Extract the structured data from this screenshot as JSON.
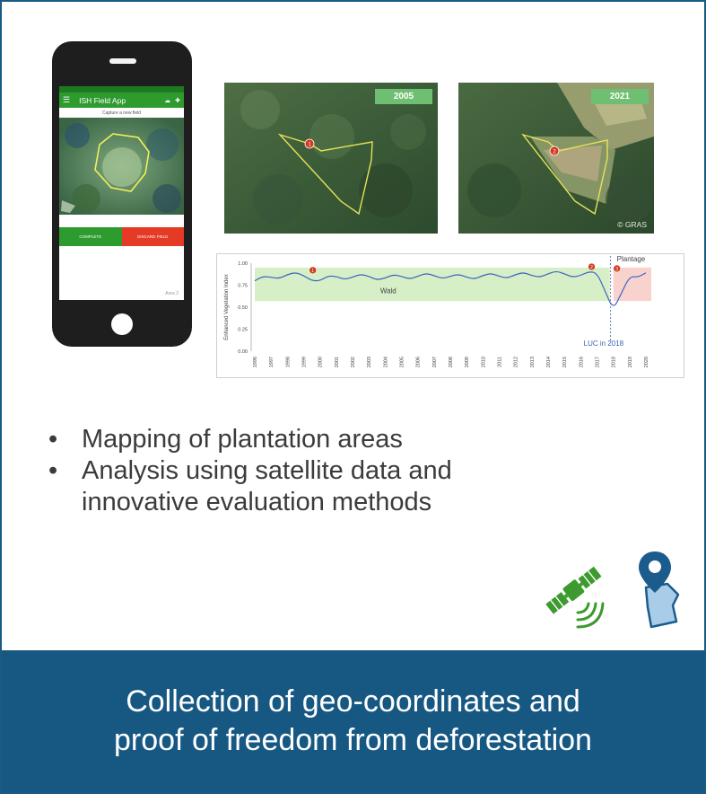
{
  "phone": {
    "app_title": "ISH Field App",
    "subtitle": "Capture a new field",
    "complete_label": "COMPLETE",
    "discard_label": "DISCARD FIELD",
    "footer": "Area 2"
  },
  "images": {
    "left_year": "2005",
    "right_year": "2021",
    "credit": "© GRAS",
    "marker_1": "1",
    "marker_2": "2"
  },
  "chart_data": {
    "type": "line",
    "ylabel": "Enhanced Vegetation Index",
    "ylim": [
      0.0,
      1.0
    ],
    "yticks": [
      "1.00",
      "0.75",
      "0.50",
      "0.25",
      "0.00"
    ],
    "x": [
      "1996",
      "1997",
      "1998",
      "1999",
      "2000",
      "2001",
      "2002",
      "2003",
      "2004",
      "2005",
      "2006",
      "2007",
      "2008",
      "2009",
      "2010",
      "2011",
      "2012",
      "2013",
      "2014",
      "2015",
      "2016",
      "2017",
      "2018",
      "2019",
      "2020"
    ],
    "series": [
      {
        "name": "",
        "values": [
          0.8,
          0.84,
          0.87,
          0.86,
          0.8,
          0.85,
          0.84,
          0.85,
          0.83,
          0.85,
          0.85,
          0.86,
          0.85,
          0.84,
          0.86,
          0.85,
          0.87,
          0.86,
          0.88,
          0.88,
          0.86,
          0.89,
          0.47,
          0.85,
          0.89
        ]
      }
    ],
    "regions": [
      {
        "label": "Wald",
        "from_year": "1996",
        "to_year": "2018",
        "ymin": 0.57,
        "ymax": 0.95,
        "color": "#d6efc6"
      },
      {
        "label": "Plantage",
        "from_year": "2018",
        "to_year": "2020",
        "ymin": 0.57,
        "ymax": 0.95,
        "color": "#f8d3cd"
      }
    ],
    "annotations": [
      {
        "label": "1",
        "year": "2000",
        "value": 0.92
      },
      {
        "label": "2",
        "year": "2017",
        "value": 0.96
      },
      {
        "label": "3",
        "year": "2018",
        "value": 0.94
      }
    ],
    "event_label": "LUC in 2018",
    "event_year": "2018"
  },
  "bullets": [
    {
      "text": "Mapping of plantation areas"
    },
    {
      "text": "Analysis using satellite data and"
    },
    {
      "text": "innovative evaluation methods",
      "continuation": true
    }
  ],
  "icons": {
    "satellite": "satellite-icon",
    "pin": "location-pin-icon",
    "satellite_color": "#3c9a2e",
    "pin_color": "#1b5c8c",
    "area_color": "#a9cde9"
  },
  "banner": {
    "line1": "Collection of geo-coordinates and",
    "line2": "proof of freedom from deforestation",
    "color": "#175883"
  }
}
